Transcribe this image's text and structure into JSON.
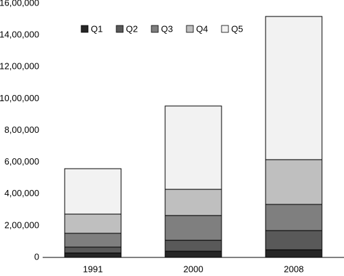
{
  "chart_data": {
    "type": "stacked-bar",
    "categories": [
      "1991",
      "2000",
      "2008"
    ],
    "series": [
      {
        "name": "Q1",
        "color": "#262626",
        "values": [
          28000,
          39000,
          48000
        ]
      },
      {
        "name": "Q2",
        "color": "#595959",
        "values": [
          37000,
          69000,
          121000
        ]
      },
      {
        "name": "Q3",
        "color": "#7f7f7f",
        "values": [
          87000,
          156000,
          165000
        ]
      },
      {
        "name": "Q4",
        "color": "#bfbfbf",
        "values": [
          121000,
          165000,
          282000
        ]
      },
      {
        "name": "Q5",
        "color": "#f2f2f2",
        "values": [
          286000,
          525000,
          902000
        ]
      }
    ],
    "ylim": [
      0,
      1600000
    ],
    "yticks": [
      0,
      {
        "value": 200000,
        "label": "2,00,000"
      },
      {
        "value": 400000,
        "label": "4,00,000"
      },
      {
        "value": 600000,
        "label": "6,00,000"
      },
      {
        "value": 800000,
        "label": "8,00,000"
      },
      {
        "value": 1000000,
        "label": "10,00,000"
      },
      {
        "value": 1200000,
        "label": "12,00,000"
      },
      {
        "value": 1400000,
        "label": "14,00,000"
      },
      {
        "value": 1600000,
        "label": "16,00,000"
      }
    ],
    "grid": false,
    "legend": "top"
  }
}
